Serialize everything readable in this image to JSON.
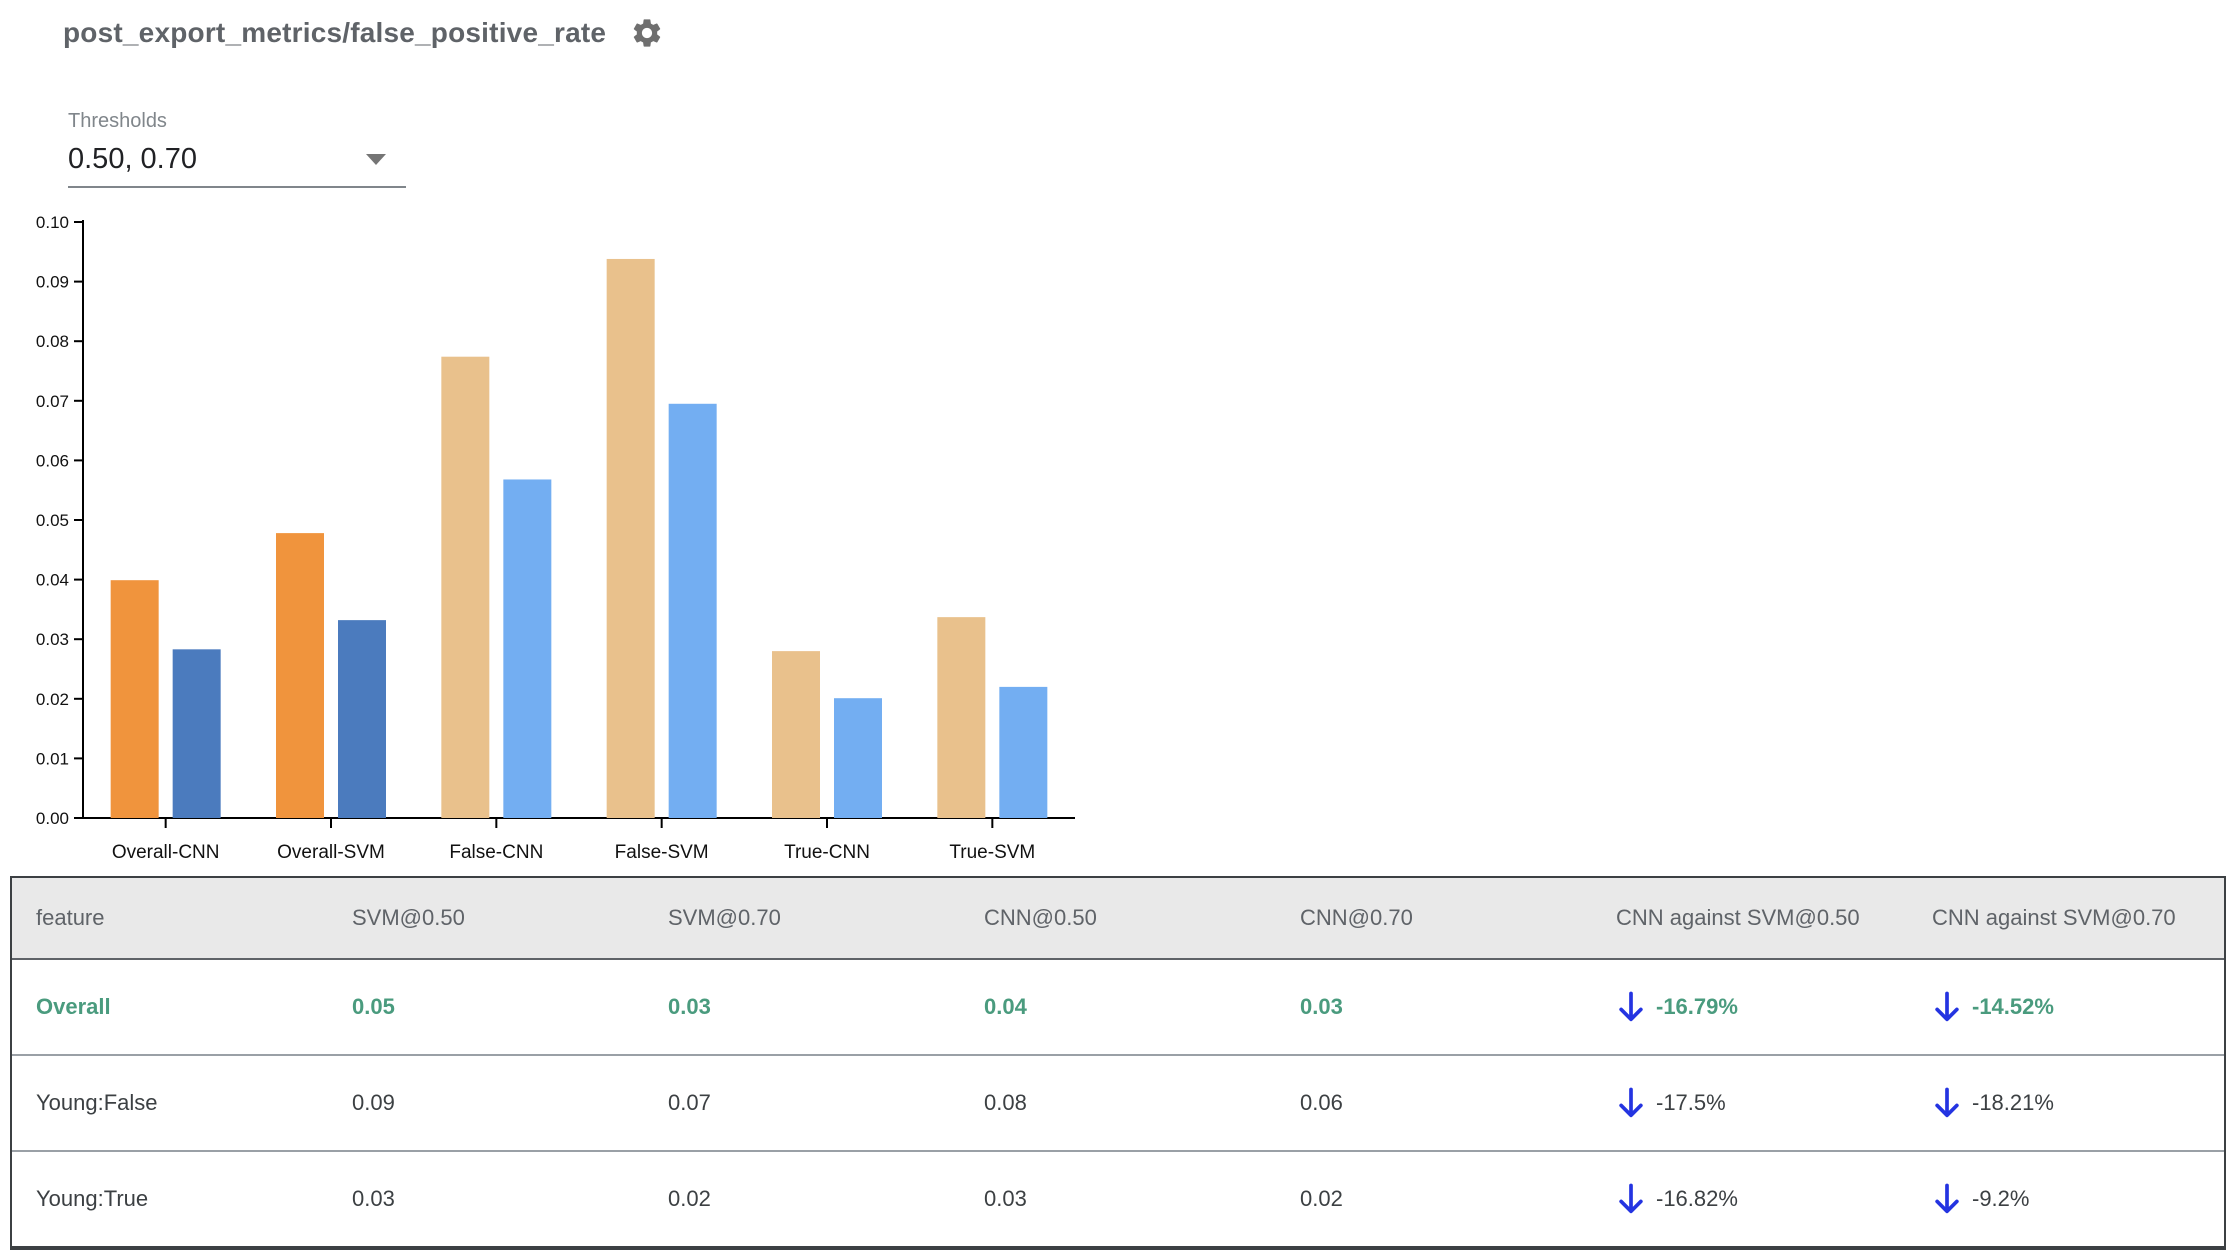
{
  "header": {
    "title": "post_export_metrics/false_positive_rate",
    "settings_icon": "gear-icon"
  },
  "controls": {
    "thresholds_label": "Thresholds",
    "thresholds_value": "0.50, 0.70",
    "dropdown_icon": "chevron-down-icon"
  },
  "chart_data": {
    "type": "bar",
    "title": "",
    "categories": [
      "Overall-CNN",
      "Overall-SVM",
      "False-CNN",
      "False-SVM",
      "True-CNN",
      "True-SVM"
    ],
    "series": [
      {
        "name": "threshold 0.50",
        "values": [
          0.0399,
          0.0478,
          0.0774,
          0.0938,
          0.028,
          0.0337
        ],
        "colors": [
          "#f0943d",
          "#f0943d",
          "#e9c18c",
          "#e9c18c",
          "#e9c18c",
          "#e9c18c"
        ]
      },
      {
        "name": "threshold 0.70",
        "values": [
          0.0283,
          0.0332,
          0.0568,
          0.0695,
          0.0201,
          0.022
        ],
        "colors": [
          "#4b7bbe",
          "#4b7bbe",
          "#73aef2",
          "#73aef2",
          "#73aef2",
          "#73aef2"
        ]
      }
    ],
    "xlabel": "",
    "ylabel": "",
    "ylim": [
      0,
      0.1
    ],
    "ytick_step": 0.01,
    "ytick_labels": [
      "0.00",
      "0.01",
      "0.02",
      "0.03",
      "0.04",
      "0.05",
      "0.06",
      "0.07",
      "0.08",
      "0.09",
      "0.10"
    ],
    "grid": false,
    "legend_position": "none"
  },
  "table": {
    "columns": [
      "feature",
      "SVM@0.50",
      "SVM@0.70",
      "CNN@0.50",
      "CNN@0.70",
      "CNN against SVM@0.50",
      "CNN against SVM@0.70"
    ],
    "rows": [
      {
        "feature": "Overall",
        "values": [
          "0.05",
          "0.03",
          "0.04",
          "0.03"
        ],
        "comparisons": [
          "-16.79%",
          "-14.52%"
        ],
        "comparison_icons": [
          "down-arrow-icon",
          "down-arrow-icon"
        ],
        "highlight": true
      },
      {
        "feature": "Young:False",
        "values": [
          "0.09",
          "0.07",
          "0.08",
          "0.06"
        ],
        "comparisons": [
          "-17.5%",
          "-18.21%"
        ],
        "comparison_icons": [
          "down-arrow-icon",
          "down-arrow-icon"
        ],
        "highlight": false
      },
      {
        "feature": "Young:True",
        "values": [
          "0.03",
          "0.02",
          "0.03",
          "0.02"
        ],
        "comparisons": [
          "-16.82%",
          "-9.2%"
        ],
        "comparison_icons": [
          "down-arrow-icon",
          "down-arrow-icon"
        ],
        "highlight": false
      }
    ]
  },
  "colors": {
    "title_gray": "#5f6368",
    "highlight_green": "#4a9b7e",
    "arrow_blue": "#2434e1",
    "header_bg": "#e9e9e9",
    "axis_black": "#000000"
  }
}
